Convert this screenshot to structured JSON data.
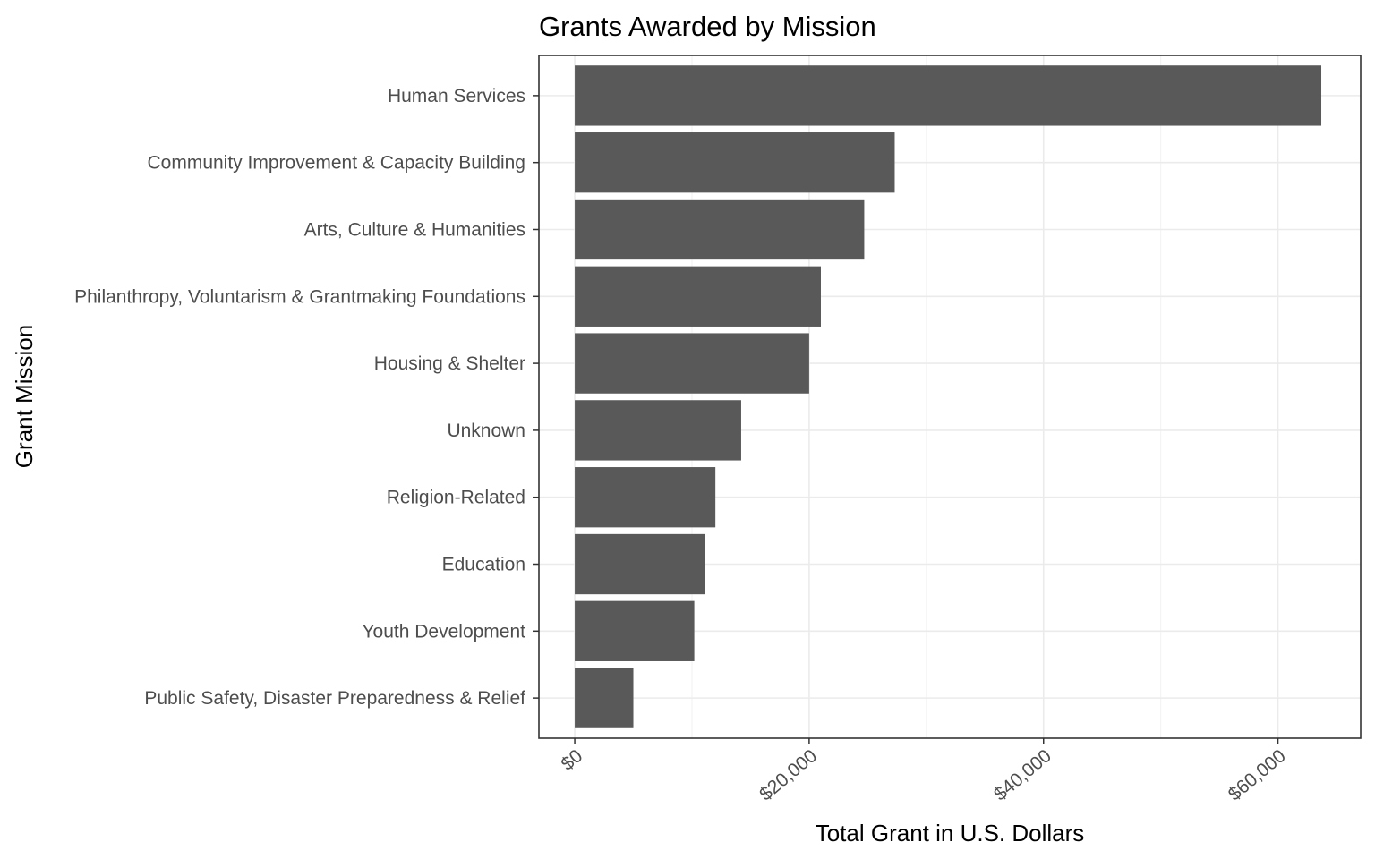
{
  "chart_data": {
    "type": "bar",
    "orientation": "horizontal",
    "title": "Grants Awarded by Mission",
    "xlabel": "Total Grant in U.S. Dollars",
    "ylabel": "Grant Mission",
    "xlim": [
      -3060,
      67060
    ],
    "x_ticks": [
      0,
      20000,
      40000,
      60000
    ],
    "x_tick_labels": [
      "$0",
      "$20,000",
      "$40,000",
      "$60,000"
    ],
    "categories": [
      "Human Services",
      "Community Improvement & Capacity Building",
      "Arts, Culture & Humanities",
      "Philanthropy, Voluntarism & Grantmaking Foundations",
      "Housing & Shelter",
      "Unknown",
      "Religion-Related",
      "Education",
      "Youth Development",
      "Public Safety, Disaster Preparedness & Relief"
    ],
    "values": [
      63700,
      27300,
      24700,
      21000,
      20000,
      14200,
      12000,
      11100,
      10200,
      5000
    ],
    "bar_color": "#595959",
    "grid": true,
    "theme": "bw"
  }
}
